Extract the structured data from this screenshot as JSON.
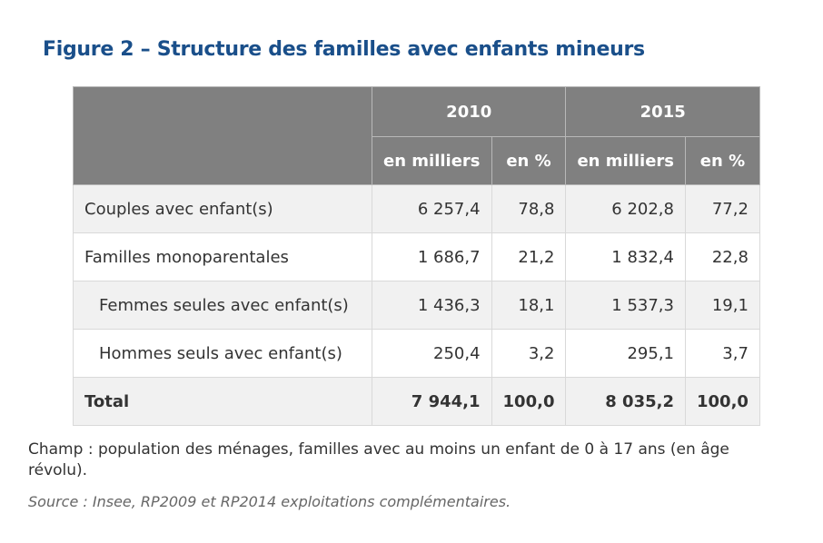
{
  "title": "Figure 2 – Structure des familles avec enfants mineurs",
  "table": {
    "years": [
      "2010",
      "2015"
    ],
    "subheaders": [
      "en milliers",
      "en %",
      "en milliers",
      "en %"
    ],
    "rows": [
      {
        "label": "Couples avec enfant(s)",
        "values": [
          "6 257,4",
          "78,8",
          "6 202,8",
          "77,2"
        ],
        "indent": false
      },
      {
        "label": "Familles monoparentales",
        "values": [
          "1 686,7",
          "21,2",
          "1 832,4",
          "22,8"
        ],
        "indent": false
      },
      {
        "label": "Femmes seules avec enfant(s)",
        "values": [
          "1 436,3",
          "18,1",
          "1 537,3",
          "19,1"
        ],
        "indent": true
      },
      {
        "label": "Hommes seuls avec enfant(s)",
        "values": [
          "250,4",
          "3,2",
          "295,1",
          "3,7"
        ],
        "indent": true
      },
      {
        "label": "Total",
        "values": [
          "7 944,1",
          "100,0",
          "8 035,2",
          "100,0"
        ],
        "indent": false
      }
    ]
  },
  "note": "Champ : population des ménages, familles avec au moins un enfant de 0 à 17 ans (en âge révolu).",
  "source": "Source : Insee, RP2009 et RP2014 exploitations complémentaires.",
  "colors": {
    "title": "#1a4f8a",
    "header_bg": "#808080",
    "row_alt": "#f1f1f1"
  }
}
